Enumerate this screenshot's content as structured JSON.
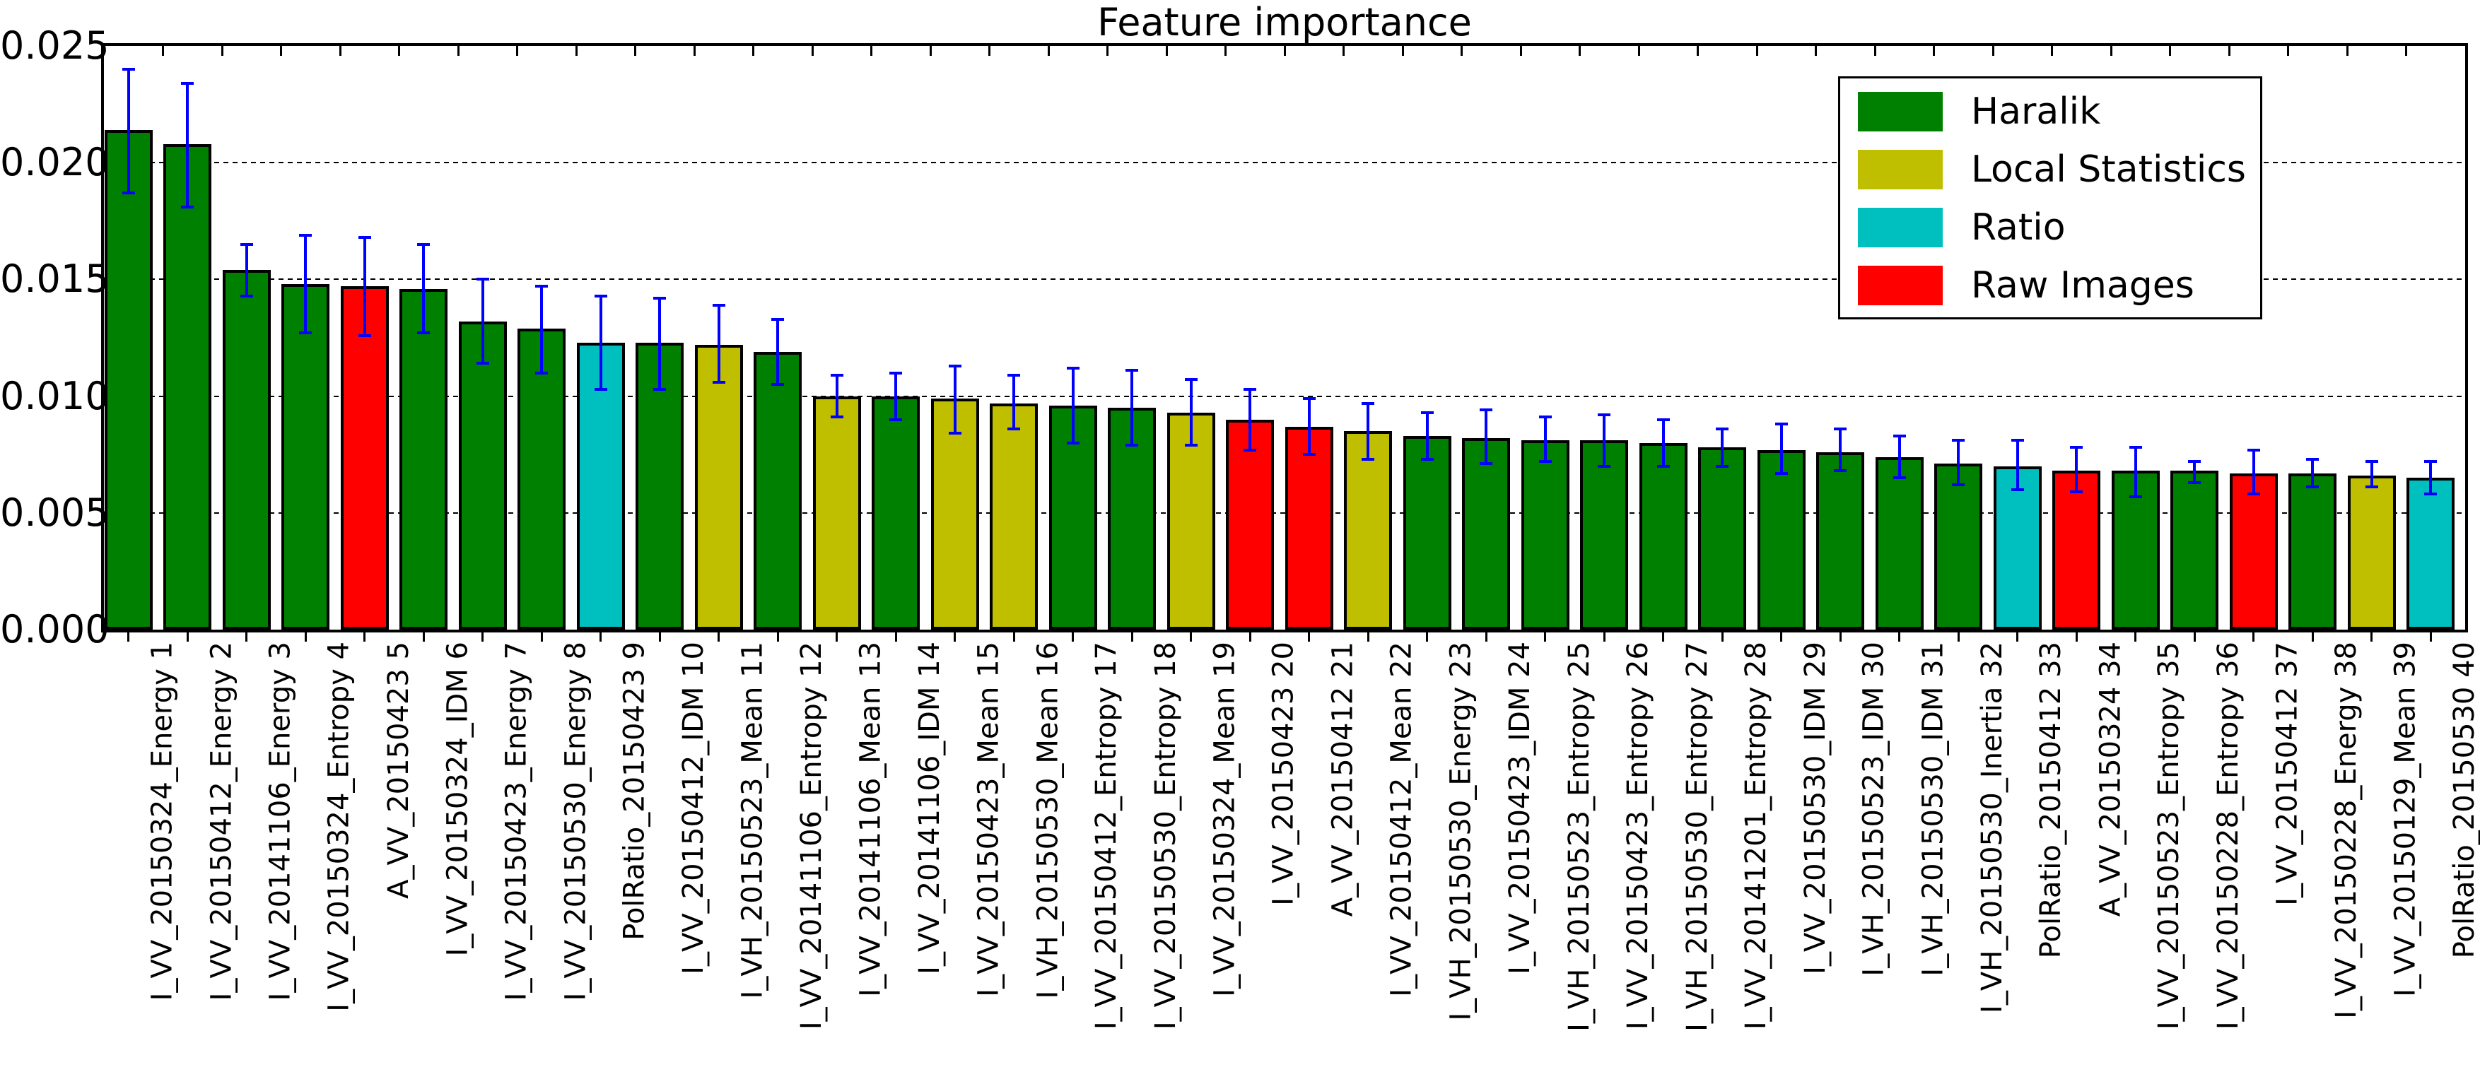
{
  "chart_data": {
    "type": "bar",
    "title": "Feature importance",
    "xlabel": "",
    "ylabel": "",
    "ylim": [
      0,
      0.025
    ],
    "y_ticks": [
      "0.000",
      "0.005",
      "0.010",
      "0.015",
      "0.020",
      "0.025"
    ],
    "grid": {
      "axis": "y",
      "style": "dotted",
      "step": 0.005
    },
    "error_bar_color": "#0000ff",
    "bar_edge_color": "#000000",
    "legend": {
      "position": "upper right",
      "entries": [
        {
          "label": "Haralik",
          "group": "haralik",
          "color": "#008000"
        },
        {
          "label": "Local Statistics",
          "group": "local_statistics",
          "color": "#bfbf00"
        },
        {
          "label": "Ratio",
          "group": "ratio",
          "color": "#00bfbf"
        },
        {
          "label": "Raw Images",
          "group": "raw_images",
          "color": "#ff0000"
        }
      ]
    },
    "colors": {
      "haralik": "#008000",
      "local_statistics": "#bfbf00",
      "ratio": "#00bfbf",
      "raw_images": "#ff0000"
    },
    "bars": [
      {
        "label": "I_VV_20150324_Energy 1",
        "group": "haralik",
        "value": 0.0214,
        "err_low": 0.0187,
        "err_high": 0.024
      },
      {
        "label": "I_VV_20150412_Energy 2",
        "group": "haralik",
        "value": 0.0208,
        "err_low": 0.0181,
        "err_high": 0.0234
      },
      {
        "label": "I_VV_20141106_Energy 3",
        "group": "haralik",
        "value": 0.0154,
        "err_low": 0.0143,
        "err_high": 0.0165
      },
      {
        "label": "I_VV_20150324_Entropy 4",
        "group": "haralik",
        "value": 0.0148,
        "err_low": 0.0127,
        "err_high": 0.0169
      },
      {
        "label": "A_VV_20150423 5",
        "group": "raw_images",
        "value": 0.0147,
        "err_low": 0.0126,
        "err_high": 0.0168
      },
      {
        "label": "I_VV_20150324_IDM 6",
        "group": "haralik",
        "value": 0.0146,
        "err_low": 0.0127,
        "err_high": 0.0165
      },
      {
        "label": "I_VV_20150423_Energy 7",
        "group": "haralik",
        "value": 0.0132,
        "err_low": 0.0114,
        "err_high": 0.015
      },
      {
        "label": "I_VV_20150530_Energy 8",
        "group": "haralik",
        "value": 0.0129,
        "err_low": 0.011,
        "err_high": 0.0147
      },
      {
        "label": "PolRatio_20150423 9",
        "group": "ratio",
        "value": 0.0123,
        "err_low": 0.0103,
        "err_high": 0.0143
      },
      {
        "label": "I_VV_20150412_IDM 10",
        "group": "haralik",
        "value": 0.0123,
        "err_low": 0.0103,
        "err_high": 0.0142
      },
      {
        "label": "I_VH_20150523_Mean 11",
        "group": "local_statistics",
        "value": 0.0122,
        "err_low": 0.0106,
        "err_high": 0.0139
      },
      {
        "label": "I_VV_20141106_Entropy 12",
        "group": "haralik",
        "value": 0.0119,
        "err_low": 0.0105,
        "err_high": 0.0133
      },
      {
        "label": "I_VV_20141106_Mean 13",
        "group": "local_statistics",
        "value": 0.01,
        "err_low": 0.0091,
        "err_high": 0.0109
      },
      {
        "label": "I_VV_20141106_IDM 14",
        "group": "haralik",
        "value": 0.01,
        "err_low": 0.009,
        "err_high": 0.011
      },
      {
        "label": "I_VV_20150423_Mean 15",
        "group": "local_statistics",
        "value": 0.0099,
        "err_low": 0.0084,
        "err_high": 0.0113
      },
      {
        "label": "I_VH_20150530_Mean 16",
        "group": "local_statistics",
        "value": 0.0097,
        "err_low": 0.0086,
        "err_high": 0.0109
      },
      {
        "label": "I_VV_20150412_Entropy 17",
        "group": "haralik",
        "value": 0.0096,
        "err_low": 0.008,
        "err_high": 0.0112
      },
      {
        "label": "I_VV_20150530_Entropy 18",
        "group": "haralik",
        "value": 0.0095,
        "err_low": 0.0079,
        "err_high": 0.0111
      },
      {
        "label": "I_VV_20150324_Mean 19",
        "group": "local_statistics",
        "value": 0.0093,
        "err_low": 0.0079,
        "err_high": 0.0107
      },
      {
        "label": "I_VV_20150423 20",
        "group": "raw_images",
        "value": 0.009,
        "err_low": 0.0077,
        "err_high": 0.0103
      },
      {
        "label": "A_VV_20150412 21",
        "group": "raw_images",
        "value": 0.0087,
        "err_low": 0.0075,
        "err_high": 0.0099
      },
      {
        "label": "I_VV_20150412_Mean 22",
        "group": "local_statistics",
        "value": 0.0085,
        "err_low": 0.0073,
        "err_high": 0.0097
      },
      {
        "label": "I_VH_20150530_Energy 23",
        "group": "haralik",
        "value": 0.0083,
        "err_low": 0.0073,
        "err_high": 0.0093
      },
      {
        "label": "I_VV_20150423_IDM 24",
        "group": "haralik",
        "value": 0.0082,
        "err_low": 0.0071,
        "err_high": 0.0094
      },
      {
        "label": "I_VH_20150523_Entropy 25",
        "group": "haralik",
        "value": 0.0081,
        "err_low": 0.0072,
        "err_high": 0.0091
      },
      {
        "label": "I_VV_20150423_Entropy 26",
        "group": "haralik",
        "value": 0.0081,
        "err_low": 0.007,
        "err_high": 0.0092
      },
      {
        "label": "I_VH_20150530_Entropy 27",
        "group": "haralik",
        "value": 0.008,
        "err_low": 0.007,
        "err_high": 0.009
      },
      {
        "label": "I_VV_20141201_Entropy 28",
        "group": "haralik",
        "value": 0.0078,
        "err_low": 0.007,
        "err_high": 0.0086
      },
      {
        "label": "I_VV_20150530_IDM 29",
        "group": "haralik",
        "value": 0.0077,
        "err_low": 0.0067,
        "err_high": 0.0088
      },
      {
        "label": "I_VH_20150523_IDM 30",
        "group": "haralik",
        "value": 0.0076,
        "err_low": 0.0068,
        "err_high": 0.0086
      },
      {
        "label": "I_VH_20150530_IDM 31",
        "group": "haralik",
        "value": 0.0074,
        "err_low": 0.0065,
        "err_high": 0.0083
      },
      {
        "label": "I_VH_20150530_Inertia 32",
        "group": "haralik",
        "value": 0.0071,
        "err_low": 0.0062,
        "err_high": 0.0081
      },
      {
        "label": "PolRatio_20150412 33",
        "group": "ratio",
        "value": 0.007,
        "err_low": 0.006,
        "err_high": 0.0081
      },
      {
        "label": "A_VV_20150324 34",
        "group": "raw_images",
        "value": 0.0068,
        "err_low": 0.0059,
        "err_high": 0.0078
      },
      {
        "label": "I_VV_20150523_Entropy 35",
        "group": "haralik",
        "value": 0.0068,
        "err_low": 0.0057,
        "err_high": 0.0078
      },
      {
        "label": "I_VV_20150228_Entropy 36",
        "group": "haralik",
        "value": 0.0068,
        "err_low": 0.0063,
        "err_high": 0.0072
      },
      {
        "label": "I_VV_20150412 37",
        "group": "raw_images",
        "value": 0.0067,
        "err_low": 0.0058,
        "err_high": 0.0077
      },
      {
        "label": "I_VV_20150228_Energy 38",
        "group": "haralik",
        "value": 0.0067,
        "err_low": 0.0061,
        "err_high": 0.0073
      },
      {
        "label": "I_VV_20150129_Mean 39",
        "group": "local_statistics",
        "value": 0.0066,
        "err_low": 0.0061,
        "err_high": 0.0072
      },
      {
        "label": "PolRatio_20150530 40",
        "group": "ratio",
        "value": 0.0065,
        "err_low": 0.0058,
        "err_high": 0.0072
      }
    ]
  }
}
